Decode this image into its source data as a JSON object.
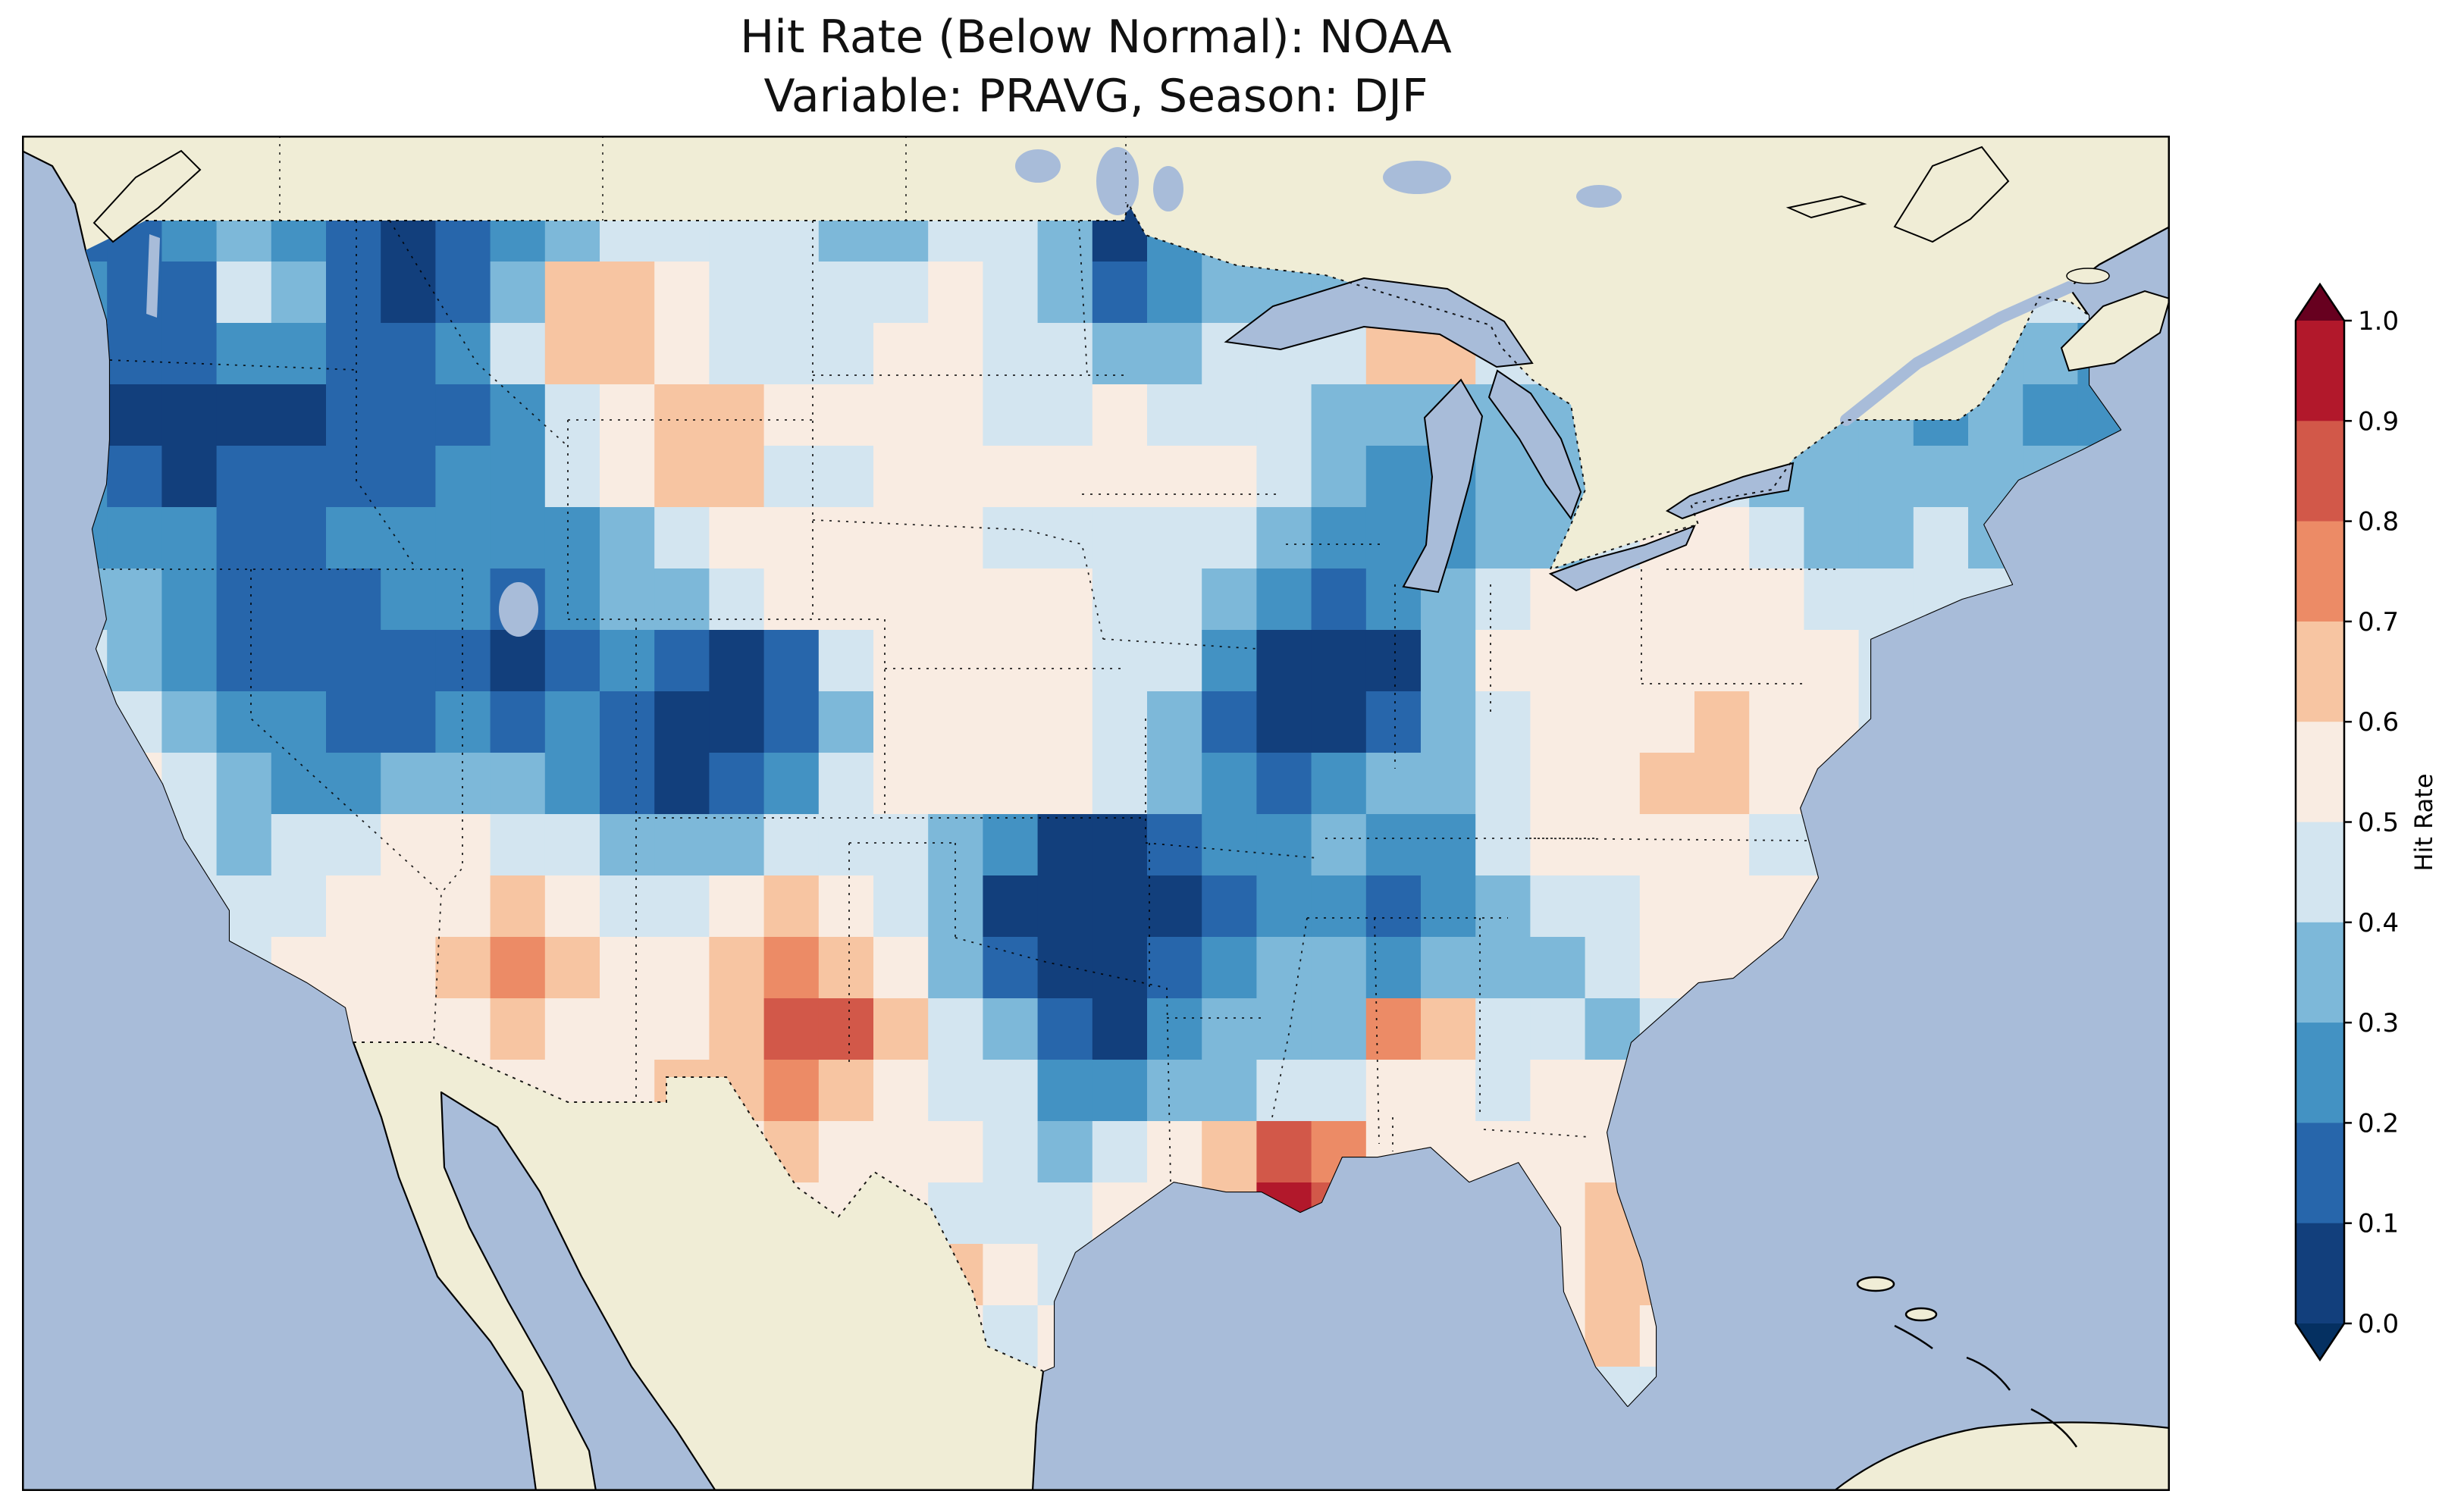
{
  "figure": {
    "title_line1": "Hit Rate (Below Normal): NOAA",
    "title_line2": "Variable: PRAVG, Season: DJF"
  },
  "chart_data": {
    "type": "heatmap",
    "title": "Hit Rate (Below Normal): NOAA",
    "subtitle": "Variable: PRAVG, Season: DJF",
    "source": "NOAA",
    "variable": "PRAVG",
    "season": "DJF",
    "map": {
      "region": "Contiguous United States",
      "projection": "equirectangular",
      "lon_range": [
        -126.5,
        -65.5
      ],
      "lat_range": [
        23.5,
        50.7
      ]
    },
    "colors": {
      "ocean": "#a8bcd9",
      "land": "#f0edd6",
      "figure_bg": "#ffffff",
      "coastline": "#000000"
    },
    "colormap": {
      "name": "RdBu_r, 10 discrete bands",
      "under": "#053061",
      "over": "#67001f",
      "bands": [
        {
          "range": [
            0.0,
            0.1
          ],
          "color": "#123f7c"
        },
        {
          "range": [
            0.1,
            0.2
          ],
          "color": "#2766ab"
        },
        {
          "range": [
            0.2,
            0.3
          ],
          "color": "#4392c3"
        },
        {
          "range": [
            0.3,
            0.4
          ],
          "color": "#7db8d9"
        },
        {
          "range": [
            0.4,
            0.5
          ],
          "color": "#d3e5f0"
        },
        {
          "range": [
            0.5,
            0.6
          ],
          "color": "#f9ece2"
        },
        {
          "range": [
            0.6,
            0.7
          ],
          "color": "#f7c5a2"
        },
        {
          "range": [
            0.7,
            0.8
          ],
          "color": "#ec8b66"
        },
        {
          "range": [
            0.8,
            0.9
          ],
          "color": "#d25849"
        },
        {
          "range": [
            0.9,
            1.0
          ],
          "color": "#b2182b"
        }
      ]
    },
    "colorbar": {
      "label": "Hit Rate",
      "orientation": "vertical",
      "extend": "both",
      "ticks": [
        "1.0",
        "0.9",
        "0.8",
        "0.7",
        "0.6",
        "0.5",
        "0.4",
        "0.3",
        "0.2",
        "0.1",
        "0.0"
      ]
    },
    "grid": {
      "nx": 38,
      "ny": 20,
      "lon_west": -125.6,
      "lon_east": -66.6,
      "lat_north": 49.4,
      "lat_south": 24.8,
      "note": "Approximate hit-rate values per cell read from the map; rows north to south, columns west to east; cells outside the CONUS outline are clipped by the coast/border mask.",
      "values": [
        [
          0.15,
          0.15,
          0.25,
          0.35,
          0.25,
          0.15,
          0.05,
          0.15,
          0.25,
          0.35,
          0.45,
          0.45,
          0.45,
          0.45,
          0.35,
          0.35,
          0.45,
          0.45,
          0.35,
          0.05,
          0.25,
          0.35,
          0.35,
          0.35,
          0.35,
          0.35,
          0.35,
          0.45,
          0.45,
          0.45,
          0.45,
          0.45,
          0.45,
          0.45,
          0.45,
          0.45,
          0.45,
          0.45
        ],
        [
          0.25,
          0.15,
          0.15,
          0.45,
          0.35,
          0.15,
          0.05,
          0.15,
          0.35,
          0.65,
          0.65,
          0.55,
          0.45,
          0.45,
          0.45,
          0.45,
          0.55,
          0.45,
          0.35,
          0.15,
          0.25,
          0.35,
          0.35,
          0.35,
          0.45,
          0.45,
          0.35,
          0.45,
          0.45,
          0.45,
          0.45,
          0.45,
          0.45,
          0.45,
          0.45,
          0.45,
          0.45,
          0.45
        ],
        [
          0.15,
          0.15,
          0.15,
          0.25,
          0.25,
          0.15,
          0.15,
          0.25,
          0.45,
          0.65,
          0.65,
          0.55,
          0.45,
          0.45,
          0.45,
          0.55,
          0.55,
          0.45,
          0.45,
          0.35,
          0.35,
          0.45,
          0.45,
          0.45,
          0.65,
          0.65,
          0.45,
          0.45,
          0.45,
          0.45,
          0.45,
          0.45,
          0.45,
          0.45,
          0.35,
          0.35,
          0.35,
          0.25
        ],
        [
          0.15,
          0.05,
          0.05,
          0.05,
          0.05,
          0.15,
          0.15,
          0.15,
          0.25,
          0.45,
          0.55,
          0.65,
          0.65,
          0.55,
          0.55,
          0.55,
          0.55,
          0.45,
          0.45,
          0.55,
          0.45,
          0.45,
          0.45,
          0.35,
          0.35,
          0.35,
          0.35,
          0.35,
          0.45,
          0.45,
          0.35,
          0.35,
          0.35,
          0.35,
          0.25,
          0.35,
          0.25,
          0.25
        ],
        [
          0.25,
          0.15,
          0.05,
          0.15,
          0.15,
          0.15,
          0.15,
          0.25,
          0.25,
          0.45,
          0.55,
          0.65,
          0.65,
          0.45,
          0.45,
          0.55,
          0.55,
          0.55,
          0.55,
          0.55,
          0.55,
          0.55,
          0.45,
          0.35,
          0.25,
          0.25,
          0.35,
          0.35,
          0.35,
          0.45,
          0.45,
          0.35,
          0.35,
          0.35,
          0.35,
          0.35,
          0.35,
          0.35
        ],
        [
          0.25,
          0.25,
          0.25,
          0.15,
          0.15,
          0.25,
          0.25,
          0.25,
          0.25,
          0.25,
          0.35,
          0.45,
          0.55,
          0.55,
          0.55,
          0.55,
          0.55,
          0.45,
          0.45,
          0.45,
          0.45,
          0.45,
          0.35,
          0.25,
          0.25,
          0.25,
          0.35,
          0.35,
          0.45,
          0.55,
          0.55,
          0.45,
          0.35,
          0.35,
          0.45,
          0.35,
          0.35,
          0.35
        ],
        [
          0.35,
          0.35,
          0.25,
          0.15,
          0.15,
          0.15,
          0.25,
          0.25,
          0.15,
          0.25,
          0.35,
          0.35,
          0.45,
          0.55,
          0.55,
          0.55,
          0.55,
          0.55,
          0.55,
          0.45,
          0.45,
          0.35,
          0.25,
          0.15,
          0.25,
          0.35,
          0.45,
          0.55,
          0.55,
          0.55,
          0.55,
          0.55,
          0.45,
          0.45,
          0.45,
          0.45,
          0.45,
          0.45
        ],
        [
          0.45,
          0.35,
          0.25,
          0.15,
          0.15,
          0.15,
          0.15,
          0.15,
          0.05,
          0.15,
          0.25,
          0.15,
          0.05,
          0.15,
          0.45,
          0.55,
          0.55,
          0.55,
          0.55,
          0.45,
          0.45,
          0.25,
          0.05,
          0.05,
          0.05,
          0.35,
          0.55,
          0.55,
          0.55,
          0.55,
          0.55,
          0.55,
          0.55,
          0.45,
          0.45,
          0.45,
          0.45,
          0.45
        ],
        [
          0.45,
          0.45,
          0.35,
          0.25,
          0.25,
          0.15,
          0.15,
          0.25,
          0.15,
          0.25,
          0.15,
          0.05,
          0.05,
          0.15,
          0.35,
          0.55,
          0.55,
          0.55,
          0.55,
          0.45,
          0.35,
          0.15,
          0.05,
          0.05,
          0.15,
          0.35,
          0.45,
          0.55,
          0.55,
          0.55,
          0.65,
          0.55,
          0.55,
          0.45,
          0.45,
          0.45,
          0.45,
          0.45
        ],
        [
          0.45,
          0.55,
          0.45,
          0.35,
          0.25,
          0.25,
          0.35,
          0.35,
          0.35,
          0.25,
          0.15,
          0.05,
          0.15,
          0.25,
          0.45,
          0.55,
          0.55,
          0.55,
          0.55,
          0.45,
          0.35,
          0.25,
          0.15,
          0.25,
          0.35,
          0.35,
          0.45,
          0.55,
          0.55,
          0.65,
          0.65,
          0.55,
          0.55,
          0.45,
          0.45,
          0.45,
          0.45,
          0.45
        ],
        [
          0.55,
          0.55,
          0.45,
          0.35,
          0.45,
          0.45,
          0.55,
          0.55,
          0.45,
          0.45,
          0.35,
          0.35,
          0.35,
          0.45,
          0.45,
          0.45,
          0.35,
          0.25,
          0.05,
          0.05,
          0.15,
          0.25,
          0.25,
          0.35,
          0.25,
          0.25,
          0.45,
          0.55,
          0.55,
          0.55,
          0.55,
          0.45,
          0.45,
          0.45,
          0.45,
          0.45,
          0.45,
          0.45
        ],
        [
          0.55,
          0.55,
          0.45,
          0.45,
          0.45,
          0.55,
          0.55,
          0.55,
          0.65,
          0.55,
          0.45,
          0.45,
          0.55,
          0.65,
          0.55,
          0.45,
          0.35,
          0.05,
          0.05,
          0.05,
          0.05,
          0.15,
          0.25,
          0.25,
          0.15,
          0.25,
          0.35,
          0.45,
          0.45,
          0.55,
          0.55,
          0.55,
          0.55,
          0.45,
          0.45,
          0.45,
          0.45,
          0.45
        ],
        [
          0.55,
          0.55,
          0.55,
          0.45,
          0.55,
          0.55,
          0.55,
          0.65,
          0.75,
          0.65,
          0.55,
          0.55,
          0.65,
          0.75,
          0.65,
          0.55,
          0.35,
          0.15,
          0.05,
          0.05,
          0.15,
          0.25,
          0.35,
          0.35,
          0.25,
          0.35,
          0.35,
          0.35,
          0.45,
          0.55,
          0.55,
          0.55,
          0.55,
          0.55,
          0.55,
          0.55,
          0.55,
          0.55
        ],
        [
          0.55,
          0.55,
          0.55,
          0.55,
          0.55,
          0.55,
          0.55,
          0.55,
          0.65,
          0.55,
          0.55,
          0.55,
          0.65,
          0.85,
          0.85,
          0.65,
          0.45,
          0.35,
          0.15,
          0.05,
          0.25,
          0.35,
          0.35,
          0.35,
          0.75,
          0.65,
          0.45,
          0.45,
          0.35,
          0.45,
          0.55,
          0.55,
          0.55,
          0.55,
          0.55,
          0.55,
          0.55,
          0.55
        ],
        [
          0.55,
          0.55,
          0.55,
          0.55,
          0.55,
          0.55,
          0.55,
          0.55,
          0.55,
          0.55,
          0.55,
          0.65,
          0.65,
          0.75,
          0.65,
          0.55,
          0.45,
          0.45,
          0.25,
          0.25,
          0.35,
          0.35,
          0.45,
          0.45,
          0.55,
          0.55,
          0.45,
          0.55,
          0.55,
          0.55,
          0.55,
          0.55,
          0.55,
          0.55,
          0.55,
          0.55,
          0.55,
          0.55
        ],
        [
          0.55,
          0.55,
          0.55,
          0.55,
          0.55,
          0.55,
          0.55,
          0.55,
          0.55,
          0.55,
          0.55,
          0.55,
          0.55,
          0.65,
          0.55,
          0.55,
          0.55,
          0.45,
          0.35,
          0.45,
          0.55,
          0.65,
          0.85,
          0.75,
          0.55,
          0.55,
          0.55,
          0.55,
          0.55,
          0.55,
          0.55,
          0.55,
          0.55,
          0.55,
          0.55,
          0.55,
          0.55,
          0.55
        ],
        [
          0.55,
          0.55,
          0.55,
          0.55,
          0.55,
          0.55,
          0.55,
          0.55,
          0.55,
          0.55,
          0.55,
          0.55,
          0.55,
          0.55,
          0.55,
          0.55,
          0.45,
          0.45,
          0.45,
          0.55,
          0.55,
          0.65,
          0.95,
          0.85,
          0.65,
          0.55,
          0.55,
          0.55,
          0.65,
          0.55,
          0.55,
          0.55,
          0.55,
          0.55,
          0.55,
          0.55,
          0.55,
          0.55
        ],
        [
          0.55,
          0.55,
          0.55,
          0.55,
          0.55,
          0.55,
          0.55,
          0.55,
          0.55,
          0.55,
          0.55,
          0.55,
          0.55,
          0.55,
          0.55,
          0.55,
          0.65,
          0.55,
          0.45,
          0.55,
          0.55,
          0.55,
          0.55,
          0.55,
          0.55,
          0.55,
          0.55,
          0.55,
          0.65,
          0.65,
          0.55,
          0.55,
          0.55,
          0.55,
          0.55,
          0.55,
          0.55,
          0.55
        ],
        [
          0.55,
          0.55,
          0.55,
          0.55,
          0.55,
          0.55,
          0.55,
          0.55,
          0.55,
          0.55,
          0.55,
          0.55,
          0.55,
          0.55,
          0.55,
          0.45,
          0.55,
          0.45,
          0.55,
          0.55,
          0.55,
          0.55,
          0.55,
          0.55,
          0.55,
          0.55,
          0.55,
          0.55,
          0.65,
          0.55,
          0.55,
          0.55,
          0.55,
          0.55,
          0.55,
          0.55,
          0.55,
          0.55
        ],
        [
          0.55,
          0.55,
          0.55,
          0.55,
          0.55,
          0.55,
          0.55,
          0.55,
          0.55,
          0.55,
          0.55,
          0.55,
          0.55,
          0.55,
          0.55,
          0.55,
          0.55,
          0.55,
          0.55,
          0.55,
          0.55,
          0.55,
          0.55,
          0.55,
          0.55,
          0.55,
          0.55,
          0.55,
          0.45,
          0.45,
          0.55,
          0.55,
          0.55,
          0.55,
          0.55,
          0.55,
          0.55,
          0.55
        ]
      ]
    }
  }
}
